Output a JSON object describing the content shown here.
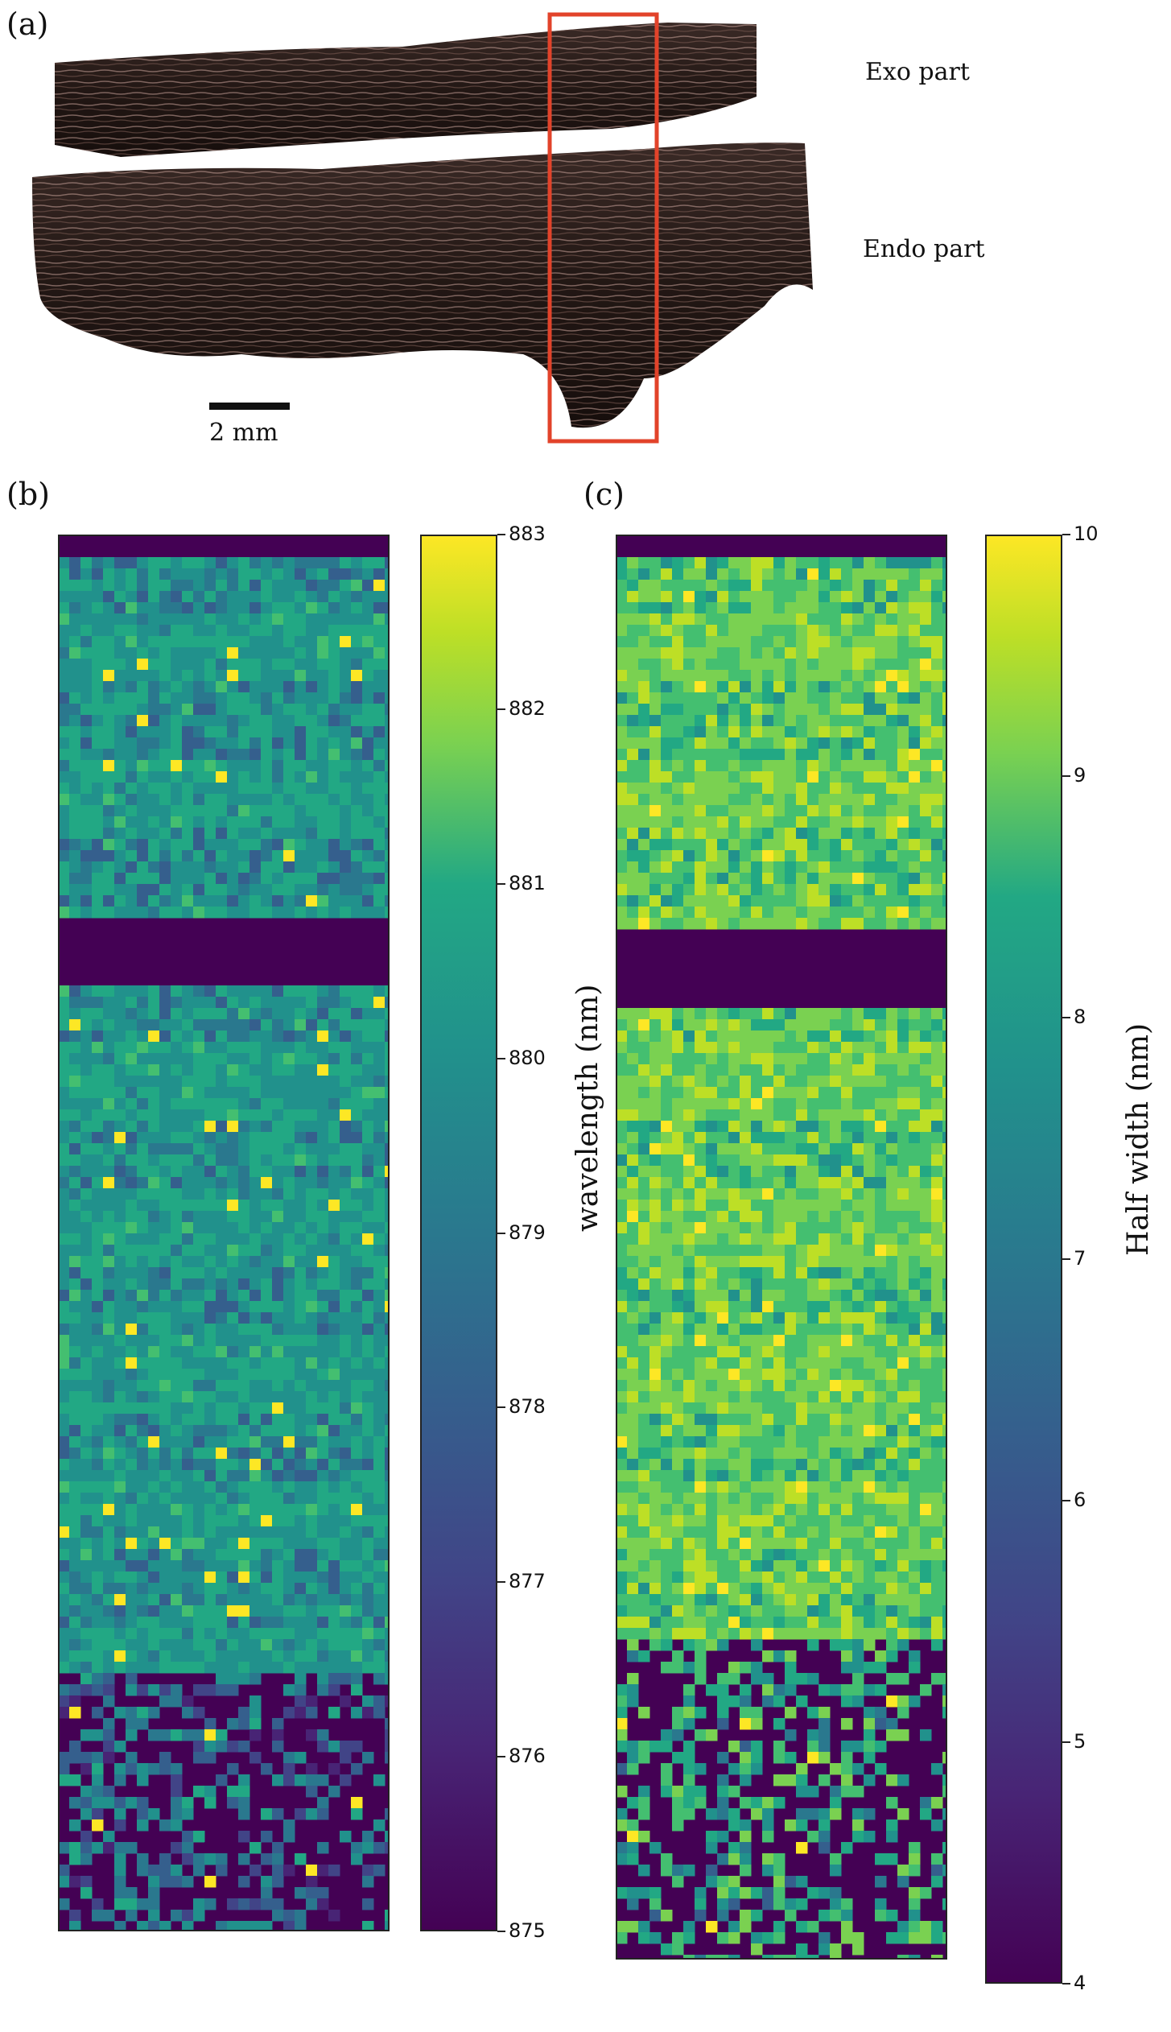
{
  "figure": {
    "panel_a": {
      "label": "(a)",
      "exo_label": "Exo part",
      "endo_label": "Endo part",
      "scale_bar_label": "2 mm"
    },
    "panel_b": {
      "label": "(b)",
      "colorbar": {
        "title": "wavelength (nm)",
        "ticks": [
          "883",
          "882",
          "881",
          "880",
          "879",
          "878",
          "877",
          "876",
          "875"
        ],
        "range": [
          875,
          883
        ],
        "colormap": "viridis"
      }
    },
    "panel_c": {
      "label": "(c)",
      "colorbar": {
        "title": "Half width (nm)",
        "ticks": [
          "10",
          "9",
          "8",
          "7",
          "6",
          "5",
          "4"
        ],
        "range": [
          4,
          10
        ],
        "colormap": "viridis"
      }
    },
    "colors": {
      "highlight_box": "#e2432a",
      "rock": "#2a1d1a",
      "viridis_dark": "#440154",
      "viridis_mid": "#21918c",
      "viridis_bright": "#fde725"
    }
  }
}
